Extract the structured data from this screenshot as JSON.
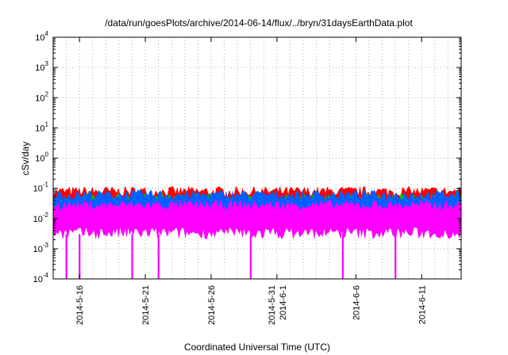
{
  "chart_data": {
    "type": "area",
    "title": "/data/run/goesPlots/archive/2014-06-14/flux/../bryn/31daysEarthData.plot",
    "xlabel": "Coordinated Universal Time (UTC)",
    "ylabel": "cSv/day",
    "yscale": "log",
    "ylim": [
      0.0001,
      10000
    ],
    "xlim": [
      "2014-05-14",
      "2014-06-14"
    ],
    "grid": true,
    "legend": "none",
    "y_ticks": [
      {
        "value": 0.0001,
        "base": "10",
        "exp": "-4"
      },
      {
        "value": 0.001,
        "base": "10",
        "exp": "-3"
      },
      {
        "value": 0.01,
        "base": "10",
        "exp": "-2"
      },
      {
        "value": 0.1,
        "base": "10",
        "exp": "-1"
      },
      {
        "value": 1,
        "base": "10",
        "exp": "0"
      },
      {
        "value": 10,
        "base": "10",
        "exp": "1"
      },
      {
        "value": 100,
        "base": "10",
        "exp": "2"
      },
      {
        "value": 1000,
        "base": "10",
        "exp": "3"
      },
      {
        "value": 10000,
        "base": "10",
        "exp": "4"
      }
    ],
    "x_ticks": [
      {
        "date": "2014-05-16",
        "lines": [
          "2014-5-16"
        ]
      },
      {
        "date": "2014-05-21",
        "lines": [
          "2014-5-21"
        ]
      },
      {
        "date": "2014-05-26",
        "lines": [
          "2014-5-26"
        ]
      },
      {
        "date": "2014-05-31",
        "lines": [
          "2014-5-31",
          "2014-6-1"
        ]
      },
      {
        "date": "2014-06-06",
        "lines": [
          "2014-6-6"
        ]
      },
      {
        "date": "2014-06-11",
        "lines": [
          "2014-6-11"
        ]
      }
    ],
    "series": [
      {
        "color": "#ff0000",
        "upper": 0.085,
        "lower": 0.025
      },
      {
        "color": "#00c000",
        "upper": 0.05,
        "lower": 0.012
      },
      {
        "color": "#0060ff",
        "upper": 0.065,
        "lower": 0.015
      },
      {
        "color": "#ff00ff",
        "upper": 0.03,
        "lower": 0.003
      }
    ],
    "dropouts": [
      "2014-05-15",
      "2014-05-16",
      "2014-05-20",
      "2014-05-22",
      "2014-05-29",
      "2014-06-05",
      "2014-06-09"
    ]
  }
}
